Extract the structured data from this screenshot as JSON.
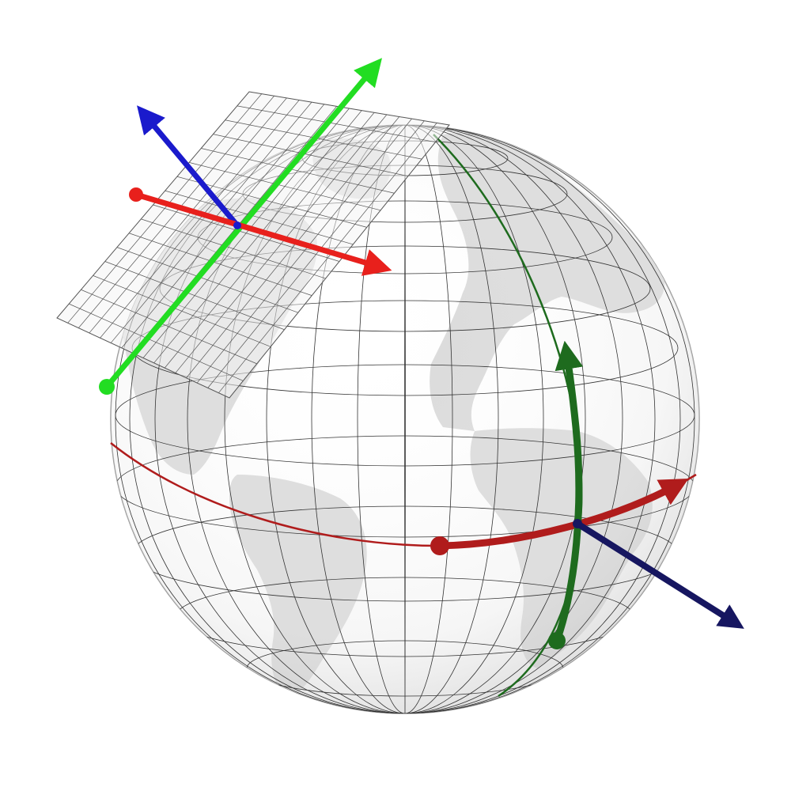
{
  "figure": {
    "subject": "globe-with-local-tangent-frames",
    "colors": {
      "background": "#ffffff",
      "land": "#d9d9d9",
      "ocean": "#ffffff",
      "graticule": "#333333",
      "tangent_plane_grid": "#555555",
      "frame_x_axis": "#e8201c",
      "frame_y_axis": "#22dd22",
      "frame_z_axis": "#1a1acc",
      "surface_parallel": "#b01c1c",
      "surface_meridian": "#1e6b1e",
      "surface_normal": "#161660"
    },
    "elements": [
      "sphere",
      "graticule",
      "continents",
      "tangent-plane",
      "upper-frame-axes",
      "surface-curves",
      "surface-frame-axes"
    ]
  }
}
